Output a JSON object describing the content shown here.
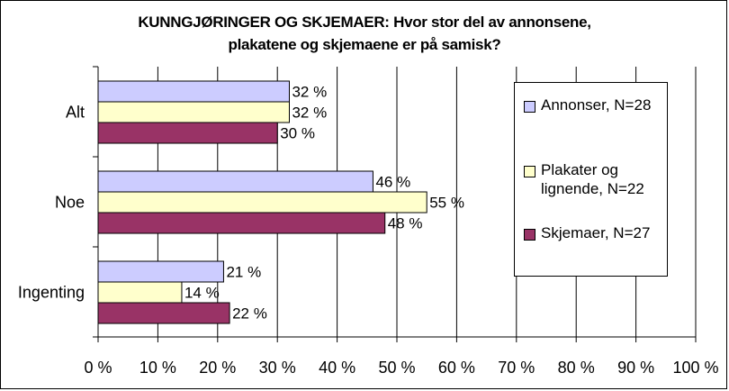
{
  "title": {
    "line1": "KUNNGJØRINGER OG SKJEMAER:  Hvor stor del av annonsene,",
    "line2": "plakatene og skjemaene er på samisk?"
  },
  "colors": {
    "annonser": "#CCCCFF",
    "plakater": "#FFFFCC",
    "skjemaer": "#993366",
    "gridline": "#000000"
  },
  "chart_data": {
    "type": "bar",
    "orientation": "horizontal",
    "categories": [
      "Alt",
      "Noe",
      "Ingenting"
    ],
    "series": [
      {
        "name": "Annonser, N=28",
        "values": [
          32,
          46,
          21
        ],
        "labels": [
          "32 %",
          "46 %",
          "21 %"
        ]
      },
      {
        "name": "Plakater og lignende, N=22",
        "values": [
          32,
          55,
          14
        ],
        "labels": [
          "32 %",
          "55 %",
          "14 %"
        ]
      },
      {
        "name": "Skjemaer, N=27",
        "values": [
          30,
          48,
          22
        ],
        "labels": [
          "30 %",
          "48 %",
          "22 %"
        ]
      }
    ],
    "xlim": [
      0,
      100
    ],
    "ticks": [
      "0 %",
      "10 %",
      "20 %",
      "30 %",
      "40 %",
      "50 %",
      "60 %",
      "70 %",
      "80 %",
      "90 %",
      "100 %"
    ],
    "grid": true,
    "legend_position": "right"
  },
  "legend": {
    "items": [
      {
        "label": "Annonser, N=28"
      },
      {
        "label": "Plakater og lignende, N=22"
      },
      {
        "label": "Skjemaer, N=27"
      }
    ]
  }
}
